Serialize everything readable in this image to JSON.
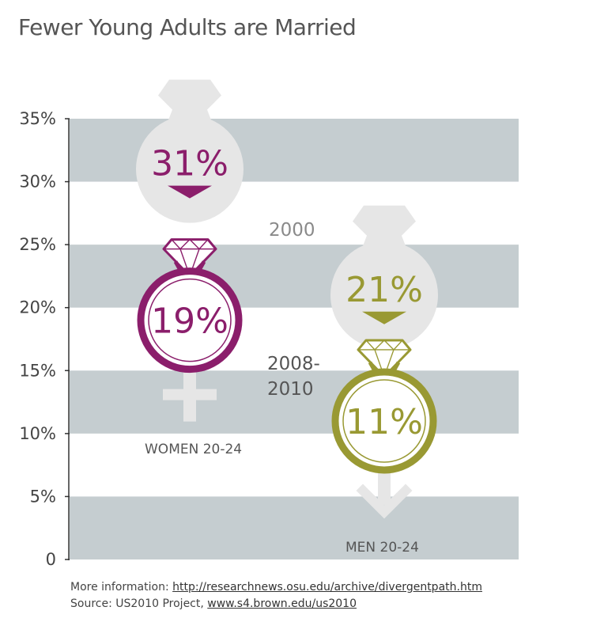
{
  "chart_data": {
    "type": "pictorial-bar",
    "title": "Fewer Young Adults are Married",
    "ylabel": "",
    "ylim": [
      0,
      35
    ],
    "y_ticks": [
      "0",
      "5%",
      "10%",
      "15%",
      "20%",
      "25%",
      "30%",
      "35%"
    ],
    "series": [
      {
        "name": "WOMEN 20-24",
        "color": "#8b1e6b",
        "values": {
          "2000": 31,
          "2008-2010": 19
        },
        "labels": {
          "2000": "31%",
          "2008-2010": "19%"
        }
      },
      {
        "name": "MEN 20-24",
        "color": "#999933",
        "values": {
          "2000": 21,
          "2008-2010": 11
        },
        "labels": {
          "2000": "21%",
          "2008-2010": "11%"
        }
      }
    ],
    "legend": {
      "past": "2000",
      "recent_line1": "2008-",
      "recent_line2": "2010"
    }
  },
  "colors": {
    "band": "#c5cdd0",
    "ghost": "#e6e6e6",
    "women": "#8b1e6b",
    "men": "#999933",
    "past_label": "#8a8a8a",
    "recent_label": "#555555"
  },
  "footer": {
    "more_prefix": "More information: ",
    "more_link": "http://researchnews.osu.edu/archive/divergentpath.htm",
    "source_prefix": "Source: US2010 Project, ",
    "source_link": "www.s4.brown.edu/us2010"
  }
}
